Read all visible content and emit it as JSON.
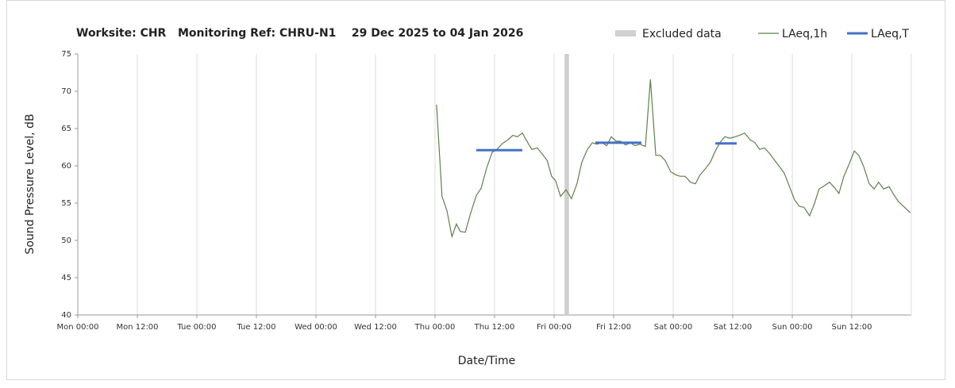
{
  "chart_data": {
    "type": "line",
    "title": "Worksite: CHR   Monitoring Ref: CHRU-N1    29 Dec 2025 to 04 Jan 2026",
    "x_label": "Date/Time",
    "y_label": "Sound Pressure Level, dB",
    "xlim": [
      0,
      168
    ],
    "ylim": [
      40,
      75
    ],
    "yticks": [
      40,
      45,
      50,
      55,
      60,
      65,
      70,
      75
    ],
    "xticks": [
      {
        "value": 0,
        "label": "Mon 00:00"
      },
      {
        "value": 12,
        "label": "Mon 12:00"
      },
      {
        "value": 24,
        "label": "Tue 00:00"
      },
      {
        "value": 36,
        "label": "Tue 12:00"
      },
      {
        "value": 48,
        "label": "Wed 00:00"
      },
      {
        "value": 60,
        "label": "Wed 12:00"
      },
      {
        "value": 72,
        "label": "Thu 00:00"
      },
      {
        "value": 84,
        "label": "Thu 12:00"
      },
      {
        "value": 96,
        "label": "Fri 00:00"
      },
      {
        "value": 108,
        "label": "Fri 12:00"
      },
      {
        "value": 120,
        "label": "Sat 00:00"
      },
      {
        "value": 132,
        "label": "Sat 12:00"
      },
      {
        "value": 144,
        "label": "Sun 00:00"
      },
      {
        "value": 156,
        "label": "Sun 12:00"
      }
    ],
    "grid": "x",
    "excluded": {
      "name": "Excluded data",
      "color": "#d0d0d0",
      "xrange": [
        98.1,
        99.0
      ]
    },
    "series": [
      {
        "name": "LAeq,1h",
        "color": "#5f7f4f",
        "x": [
          72.3,
          73.4,
          74.4,
          75.4,
          76.3,
          77.1,
          78.1,
          79.2,
          80.3,
          81.3,
          82.4,
          83.5,
          84.6,
          85.6,
          86.7,
          87.7,
          88.6,
          89.6,
          90.7,
          91.5,
          92.6,
          93.6,
          94.6,
          95.5,
          96.3,
          97.3,
          98.4,
          99.5,
          100.6,
          101.6,
          102.7,
          103.7,
          104.6,
          105.6,
          106.6,
          107.5,
          108.5,
          109.4,
          110.4,
          111.4,
          112.3,
          113.3,
          114.4,
          115.4,
          116.5,
          117.4,
          118.4,
          119.5,
          120.5,
          121.4,
          122.4,
          123.5,
          124.5,
          125.4,
          126.6,
          127.5,
          128.5,
          129.4,
          130.4,
          131.4,
          132.5,
          133.4,
          134.4,
          135.5,
          136.5,
          137.4,
          138.4,
          139.5,
          140.5,
          141.4,
          142.4,
          143.5,
          144.5,
          145.4,
          146.4,
          147.5,
          148.5,
          149.4,
          150.4,
          151.5,
          152.5,
          153.4,
          154.4,
          155.5,
          156.5,
          157.4,
          158.4,
          159.5,
          160.5,
          161.4,
          162.4,
          163.5,
          164.5,
          165.4,
          167.8
        ],
        "values": [
          68.2,
          55.9,
          54.0,
          50.5,
          52.2,
          51.2,
          51.1,
          53.7,
          56.0,
          57.0,
          59.7,
          61.8,
          62.3,
          63.0,
          63.5,
          64.1,
          63.9,
          64.4,
          63.1,
          62.2,
          62.4,
          61.6,
          60.7,
          58.6,
          58.0,
          55.9,
          56.8,
          55.6,
          57.6,
          60.5,
          62.2,
          63.1,
          62.9,
          63.1,
          62.7,
          63.9,
          63.3,
          63.3,
          62.8,
          63.1,
          62.7,
          62.9,
          62.6,
          71.6,
          61.4,
          61.4,
          60.7,
          59.2,
          58.8,
          58.6,
          58.6,
          57.8,
          57.6,
          58.8,
          59.7,
          60.5,
          62.0,
          63.1,
          63.9,
          63.7,
          63.9,
          64.1,
          64.4,
          63.5,
          63.1,
          62.2,
          62.4,
          61.6,
          60.7,
          59.9,
          59.0,
          57.1,
          55.4,
          54.6,
          54.4,
          53.3,
          55.0,
          56.9,
          57.3,
          57.8,
          57.1,
          56.3,
          58.6,
          60.3,
          62.0,
          61.4,
          59.9,
          57.6,
          56.9,
          57.8,
          56.9,
          57.2,
          56.1,
          55.2,
          53.7
        ]
      },
      {
        "name": "LAeq,T",
        "color": "#4472c4",
        "x": [
          80.3,
          89.6,
          89.7,
          104.3,
          113.6,
          113.7,
          128.5,
          132.8
        ],
        "values": [
          62.1,
          62.1,
          null,
          63.1,
          63.1,
          null,
          63.0,
          63.0
        ]
      }
    ]
  }
}
